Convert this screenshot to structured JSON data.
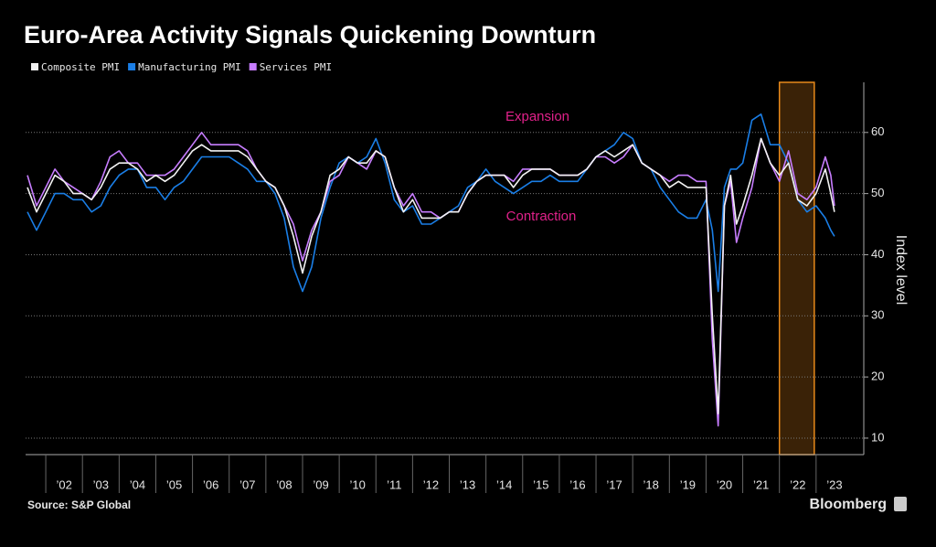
{
  "chart_data": {
    "type": "line",
    "title": "Euro-Area Activity Signals Quickening Downturn",
    "source": "Source: S&P Global",
    "brand": "Bloomberg",
    "ylabel": "Index level",
    "annotations": [
      "Expansion",
      "Contraction"
    ],
    "highlight": [
      2022.0,
      2022.95
    ],
    "highlight_color": "#e8891a",
    "x": [
      2001.5,
      2001.75,
      2002,
      2002.25,
      2002.5,
      2002.75,
      2003,
      2003.25,
      2003.5,
      2003.75,
      2004,
      2004.25,
      2004.5,
      2004.75,
      2005,
      2005.25,
      2005.5,
      2005.75,
      2006,
      2006.25,
      2006.5,
      2006.75,
      2007,
      2007.25,
      2007.5,
      2007.75,
      2008,
      2008.25,
      2008.5,
      2008.75,
      2009,
      2009.25,
      2009.5,
      2009.75,
      2010,
      2010.25,
      2010.5,
      2010.75,
      2011,
      2011.25,
      2011.5,
      2011.75,
      2012,
      2012.25,
      2012.5,
      2012.75,
      2013,
      2013.25,
      2013.5,
      2013.75,
      2014,
      2014.25,
      2014.5,
      2014.75,
      2015,
      2015.25,
      2015.5,
      2015.75,
      2016,
      2016.25,
      2016.5,
      2016.75,
      2017,
      2017.25,
      2017.5,
      2017.75,
      2018,
      2018.25,
      2018.5,
      2018.75,
      2019,
      2019.25,
      2019.5,
      2019.75,
      2020,
      2020.17,
      2020.33,
      2020.5,
      2020.67,
      2020.83,
      2021,
      2021.25,
      2021.5,
      2021.75,
      2022,
      2022.25,
      2022.5,
      2022.75,
      2023,
      2023.25,
      2023.4,
      2023.5
    ],
    "series": [
      {
        "name": "Composite PMI",
        "color": "#f2f2f2",
        "values": [
          51,
          47,
          50,
          53,
          52,
          50,
          50,
          49,
          51,
          54,
          55,
          55,
          54,
          52,
          53,
          52,
          53,
          55,
          57,
          58,
          57,
          57,
          57,
          57,
          56,
          54,
          52,
          51,
          48,
          43,
          37,
          43,
          47,
          53,
          54,
          56,
          55,
          55,
          57,
          56,
          51,
          47,
          49,
          46,
          46,
          46,
          47,
          47,
          50,
          52,
          53,
          53,
          53,
          51,
          53,
          54,
          54,
          54,
          53,
          53,
          53,
          54,
          56,
          57,
          56,
          57,
          58,
          55,
          54,
          53,
          51,
          52,
          51,
          51,
          51,
          30,
          14,
          48,
          53,
          45,
          48,
          53,
          59,
          55,
          53,
          55,
          49,
          48,
          50,
          54,
          50,
          47
        ]
      },
      {
        "name": "Manufacturing PMI",
        "color": "#1a7ee6",
        "values": [
          47,
          44,
          47,
          50,
          50,
          49,
          49,
          47,
          48,
          51,
          53,
          54,
          54,
          51,
          51,
          49,
          51,
          52,
          54,
          56,
          56,
          56,
          56,
          55,
          54,
          52,
          52,
          50,
          46,
          38,
          34,
          38,
          46,
          51,
          55,
          56,
          55,
          56,
          59,
          55,
          49,
          47,
          48,
          45,
          45,
          46,
          47,
          48,
          51,
          52,
          54,
          52,
          51,
          50,
          51,
          52,
          52,
          53,
          52,
          52,
          52,
          54,
          56,
          57,
          58,
          60,
          59,
          55,
          54,
          51,
          49,
          47,
          46,
          46,
          49,
          44,
          34,
          51,
          54,
          54,
          55,
          62,
          63,
          58,
          58,
          55,
          49,
          47,
          48,
          46,
          44,
          43
        ]
      },
      {
        "name": "Services PMI",
        "color": "#c77dff",
        "values": [
          53,
          48,
          51,
          54,
          52,
          51,
          50,
          49,
          52,
          56,
          57,
          55,
          55,
          53,
          53,
          53,
          54,
          56,
          58,
          60,
          58,
          58,
          58,
          58,
          57,
          54,
          52,
          51,
          48,
          45,
          39,
          44,
          47,
          52,
          53,
          56,
          55,
          54,
          57,
          56,
          51,
          48,
          50,
          47,
          47,
          46,
          47,
          47,
          50,
          52,
          53,
          53,
          53,
          52,
          54,
          54,
          54,
          54,
          53,
          53,
          53,
          54,
          56,
          56,
          55,
          56,
          58,
          55,
          54,
          53,
          52,
          53,
          53,
          52,
          52,
          26,
          12,
          48,
          52,
          42,
          46,
          51,
          59,
          55,
          52,
          57,
          50,
          49,
          51,
          56,
          53,
          48
        ]
      }
    ],
    "xlim": [
      2001.45,
      2024.3
    ],
    "xticks": [
      {
        "value": 2002,
        "label": "’02"
      },
      {
        "value": 2003,
        "label": "’03"
      },
      {
        "value": 2004,
        "label": "’04"
      },
      {
        "value": 2005,
        "label": "’05"
      },
      {
        "value": 2006,
        "label": "’06"
      },
      {
        "value": 2007,
        "label": "’07"
      },
      {
        "value": 2008,
        "label": "’08"
      },
      {
        "value": 2009,
        "label": "’09"
      },
      {
        "value": 2010,
        "label": "’10"
      },
      {
        "value": 2011,
        "label": "’11"
      },
      {
        "value": 2012,
        "label": "’12"
      },
      {
        "value": 2013,
        "label": "’13"
      },
      {
        "value": 2014,
        "label": "’14"
      },
      {
        "value": 2015,
        "label": "’15"
      },
      {
        "value": 2016,
        "label": "’16"
      },
      {
        "value": 2017,
        "label": "’17"
      },
      {
        "value": 2018,
        "label": "’18"
      },
      {
        "value": 2019,
        "label": "’19"
      },
      {
        "value": 2020,
        "label": "’20"
      },
      {
        "value": 2021,
        "label": "’21"
      },
      {
        "value": 2022,
        "label": "’22"
      },
      {
        "value": 2023,
        "label": "’23"
      }
    ],
    "ylim": [
      7.3,
      68.2
    ],
    "yticks": [
      10,
      20,
      30,
      40,
      50,
      60
    ],
    "grid": true
  }
}
